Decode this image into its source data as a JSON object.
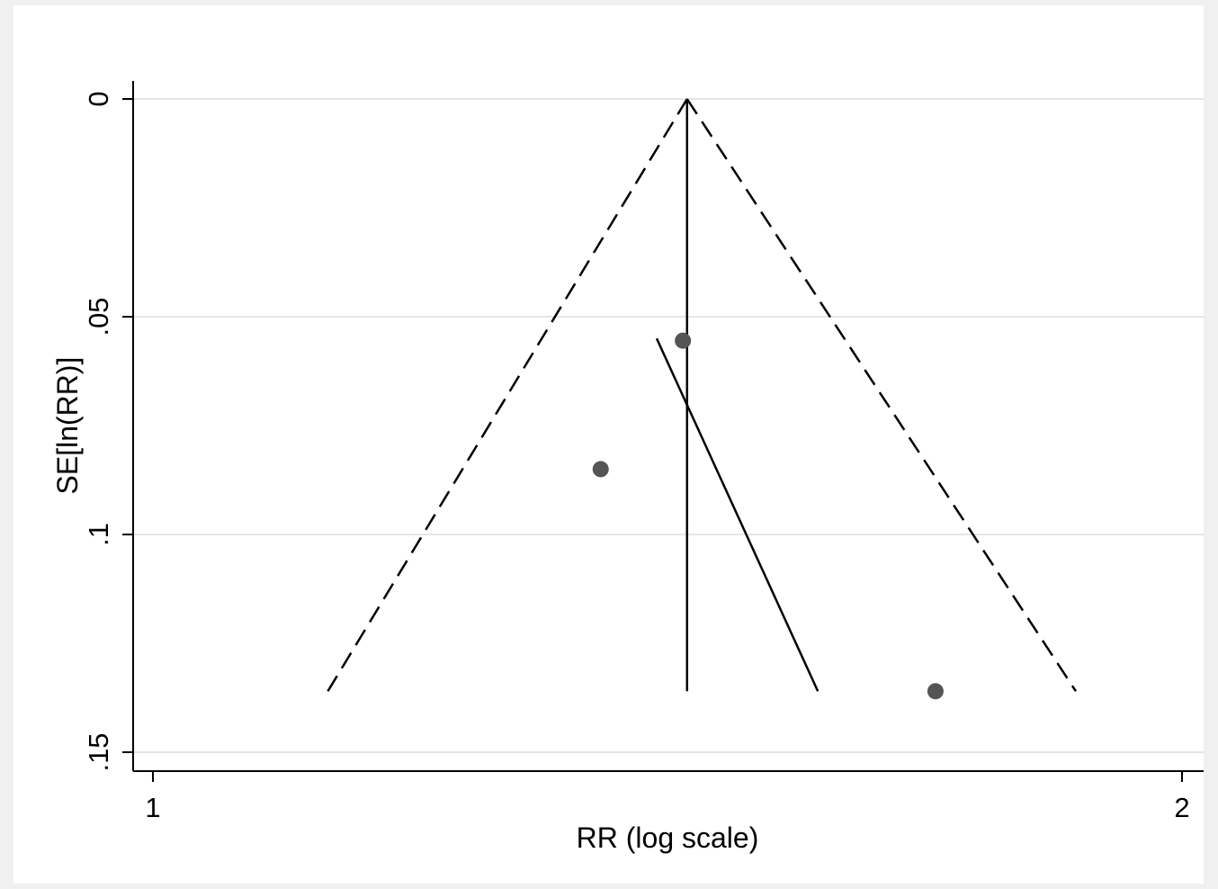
{
  "chart_data": {
    "type": "scatter",
    "subtype": "funnel plot",
    "title": "",
    "xlabel": "RR (log scale)",
    "ylabel": "SE[ln(RR)]",
    "x_scale": "log",
    "y_reversed": true,
    "xlim": [
      0.99,
      2.02
    ],
    "ylim": [
      0,
      0.155
    ],
    "x_ticks": [
      {
        "value": 1,
        "label": "1"
      },
      {
        "value": 2,
        "label": "2"
      }
    ],
    "y_ticks": [
      {
        "value": 0,
        "label": "0"
      },
      {
        "value": 0.05,
        "label": ".05"
      },
      {
        "value": 0.1,
        "label": ".1"
      },
      {
        "value": 0.15,
        "label": ".15"
      }
    ],
    "grid": "horizontal",
    "points": [
      {
        "rr": 1.429,
        "se": 0.0555
      },
      {
        "rr": 1.352,
        "se": 0.085
      },
      {
        "rr": 1.694,
        "se": 0.136
      }
    ],
    "pooled_rr": 1.433,
    "pseudo_ci_limits": [
      {
        "rr_at_top": 1.433,
        "se_top": 0,
        "rr_at_bottom": 1.125,
        "se_bottom": 0.136
      },
      {
        "rr_at_top": 1.433,
        "se_top": 0,
        "rr_at_bottom": 1.862,
        "se_bottom": 0.136
      }
    ],
    "regression_line": {
      "rr_start": 1.404,
      "se_start": 0.055,
      "rr_end": 1.565,
      "se_end": 0.136
    },
    "colors": {
      "points": "#555555",
      "lines": "#000000",
      "grid": "#e6e6e6",
      "background": "#f0f0f0",
      "plot_bg": "#ffffff"
    }
  }
}
